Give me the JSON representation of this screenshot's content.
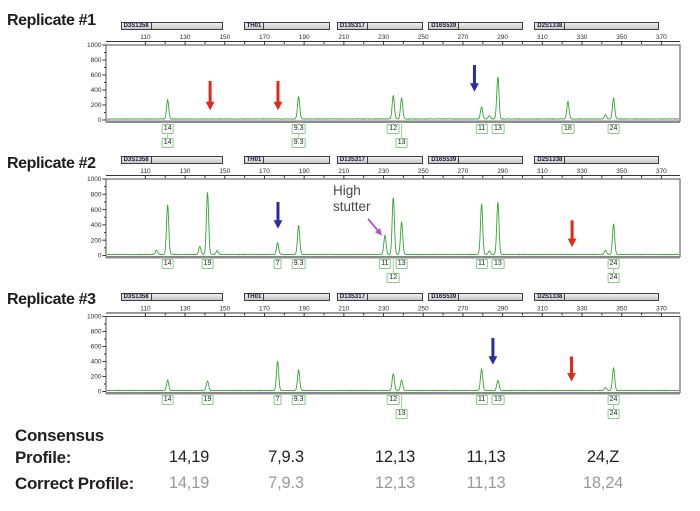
{
  "chart_data": {
    "type": "line",
    "description": "Three replicate STR electropherograms (green fluorescence traces) with allele calls, dropout arrows and stutter annotation",
    "x_axis": {
      "unit": "bp",
      "tick_min": 110,
      "tick_max": 370,
      "tick_step": 20,
      "minor_step": 10
    },
    "y_axis": {
      "min": 0,
      "max": 1000,
      "tick_step": 200,
      "minor_step": 100,
      "tick_labels": [
        "0",
        "200",
        "400",
        "600",
        "800",
        "1000"
      ]
    },
    "markers": [
      {
        "name": "D3S1358",
        "bp_start": 97.5,
        "bp_end": 149
      },
      {
        "name": "TH01",
        "bp_start": 159.5,
        "bp_end": 203
      },
      {
        "name": "D13S317",
        "bp_start": 206.5,
        "bp_end": 250
      },
      {
        "name": "D16S539",
        "bp_start": 252.5,
        "bp_end": 300.5
      },
      {
        "name": "D2S1338",
        "bp_start": 306,
        "bp_end": 369
      }
    ],
    "panels": [
      {
        "title": "Replicate #1",
        "peaks": [
          {
            "bp": 121.2,
            "rfu": 255
          },
          {
            "bp": 187.2,
            "rfu": 300
          },
          {
            "bp": 234.9,
            "rfu": 315
          },
          {
            "bp": 239.1,
            "rfu": 280
          },
          {
            "bp": 279.4,
            "rfu": 160
          },
          {
            "bp": 283.3,
            "rfu": 45
          },
          {
            "bp": 287.6,
            "rfu": 570
          },
          {
            "bp": 322.9,
            "rfu": 230
          },
          {
            "bp": 341.8,
            "rfu": 55
          },
          {
            "bp": 345.9,
            "rfu": 280
          }
        ],
        "allele_labels": [
          {
            "text": "14",
            "bp": 121.2,
            "row": 1
          },
          {
            "text": "14",
            "bp": 121.2,
            "row": 2
          },
          {
            "text": "9.3",
            "bp": 187.2,
            "row": 1
          },
          {
            "text": "9.3",
            "bp": 187.2,
            "row": 2
          },
          {
            "text": "12",
            "bp": 234.9,
            "row": 1
          },
          {
            "text": "13",
            "bp": 239.1,
            "row": 2
          },
          {
            "text": "11",
            "bp": 279.4,
            "row": 1
          },
          {
            "text": "13",
            "bp": 287.6,
            "row": 1
          },
          {
            "text": "18",
            "bp": 322.9,
            "row": 1
          },
          {
            "text": "24",
            "bp": 345.9,
            "row": 1
          }
        ],
        "arrows": [
          {
            "color": "red",
            "bp": 142.6,
            "rfu_from": 520,
            "rfu_to": 130
          },
          {
            "color": "red",
            "bp": 176.8,
            "rfu_from": 520,
            "rfu_to": 130
          },
          {
            "color": "blue",
            "bp": 275.8,
            "rfu_from": 733,
            "rfu_to": 377
          }
        ]
      },
      {
        "title": "Replicate #2",
        "peaks": [
          {
            "bp": 115.5,
            "rfu": 55
          },
          {
            "bp": 121.2,
            "rfu": 655
          },
          {
            "bp": 137.4,
            "rfu": 105
          },
          {
            "bp": 141.3,
            "rfu": 810
          },
          {
            "bp": 146.2,
            "rfu": 50
          },
          {
            "bp": 176.6,
            "rfu": 150
          },
          {
            "bp": 187.2,
            "rfu": 385
          },
          {
            "bp": 230.7,
            "rfu": 250
          },
          {
            "bp": 234.9,
            "rfu": 750
          },
          {
            "bp": 239.1,
            "rfu": 430
          },
          {
            "bp": 279.4,
            "rfu": 665
          },
          {
            "bp": 283.3,
            "rfu": 45
          },
          {
            "bp": 287.6,
            "rfu": 690
          },
          {
            "bp": 341.8,
            "rfu": 55
          },
          {
            "bp": 345.9,
            "rfu": 400
          }
        ],
        "allele_labels": [
          {
            "text": "14",
            "bp": 121.2,
            "row": 1
          },
          {
            "text": "19",
            "bp": 141.3,
            "row": 1
          },
          {
            "text": "7",
            "bp": 176.6,
            "row": 1
          },
          {
            "text": "9.3",
            "bp": 187.2,
            "row": 1
          },
          {
            "text": "11",
            "bp": 230.7,
            "row": 1
          },
          {
            "text": "12",
            "bp": 234.9,
            "row": 2
          },
          {
            "text": "13",
            "bp": 239.1,
            "row": 1
          },
          {
            "text": "11",
            "bp": 279.4,
            "row": 1
          },
          {
            "text": "13",
            "bp": 287.6,
            "row": 1
          },
          {
            "text": "24",
            "bp": 345.9,
            "row": 1
          },
          {
            "text": "24",
            "bp": 345.9,
            "row": 2
          }
        ],
        "arrows": [
          {
            "color": "blue",
            "bp": 176.8,
            "rfu_from": 700,
            "rfu_to": 350
          },
          {
            "color": "magenta",
            "bp_from": 222.2,
            "rfu_from": 480,
            "bp_to": 229.2,
            "rfu_to": 260
          },
          {
            "color": "red",
            "bp": 325,
            "rfu_from": 460,
            "rfu_to": 110
          }
        ]
      },
      {
        "title": "Replicate #3",
        "peaks": [
          {
            "bp": 121.2,
            "rfu": 140
          },
          {
            "bp": 141.3,
            "rfu": 130
          },
          {
            "bp": 176.6,
            "rfu": 390
          },
          {
            "bp": 187.2,
            "rfu": 270
          },
          {
            "bp": 234.9,
            "rfu": 225
          },
          {
            "bp": 239.1,
            "rfu": 140
          },
          {
            "bp": 279.4,
            "rfu": 285
          },
          {
            "bp": 287.6,
            "rfu": 135
          },
          {
            "bp": 341.8,
            "rfu": 40
          },
          {
            "bp": 345.9,
            "rfu": 300
          }
        ],
        "allele_labels": [
          {
            "text": "14",
            "bp": 121.2,
            "row": 1
          },
          {
            "text": "19",
            "bp": 141.3,
            "row": 1
          },
          {
            "text": "7",
            "bp": 176.6,
            "row": 1
          },
          {
            "text": "9.3",
            "bp": 187.2,
            "row": 1
          },
          {
            "text": "12",
            "bp": 234.9,
            "row": 1
          },
          {
            "text": "13",
            "bp": 239.1,
            "row": 2
          },
          {
            "text": "11",
            "bp": 279.4,
            "row": 1
          },
          {
            "text": "13",
            "bp": 287.6,
            "row": 1
          },
          {
            "text": "24",
            "bp": 345.9,
            "row": 1
          },
          {
            "text": "24",
            "bp": 345.9,
            "row": 2
          }
        ],
        "arrows": [
          {
            "color": "blue",
            "bp": 285.1,
            "rfu_from": 714,
            "rfu_to": 356
          },
          {
            "color": "red",
            "bp": 324.7,
            "rfu_from": 467,
            "rfu_to": 131
          }
        ]
      }
    ]
  },
  "annotation": {
    "line1": "High",
    "line2": "stutter"
  },
  "consensus": {
    "label_line1": "Consensus",
    "label_line2": "Profile:",
    "values": [
      "14,19",
      "7,9.3",
      "12,13",
      "11,13",
      "24,Z"
    ],
    "correct_label": "Correct Profile:",
    "correct_values": [
      "14,19",
      "7,9.3",
      "12,13",
      "11,13",
      "18,24"
    ]
  },
  "colors": {
    "trace": "#35a435",
    "red_arrow": "#df2b18",
    "blue_arrow": "#2c2c9e",
    "magenta_arrow": "#b44ec4",
    "allele_box_border": "#8cc88c",
    "connector": "#9cd19c",
    "marker_bar_fill": "#d9d9d9",
    "axis": "#4d4d4d",
    "text": "#231f20",
    "gray_text": "#97999b"
  }
}
